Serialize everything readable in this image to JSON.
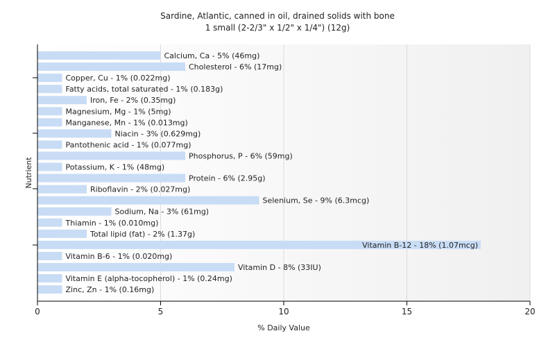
{
  "chart_data": {
    "type": "bar",
    "orientation": "horizontal",
    "title": "Sardine, Atlantic, canned in oil, drained solids with bone",
    "subtitle": "1 small (2-2/3\" x 1/2\" x 1/4\") (12g)",
    "xlabel": "% Daily Value",
    "ylabel": "Nutrient",
    "xlim": [
      0,
      20
    ],
    "xticks": [
      0,
      5,
      10,
      15,
      20
    ],
    "bar_color": "#c8dcf5",
    "grid": true,
    "categories": [
      "Calcium, Ca",
      "Cholesterol",
      "Copper, Cu",
      "Fatty acids, total saturated",
      "Iron, Fe",
      "Magnesium, Mg",
      "Manganese, Mn",
      "Niacin",
      "Pantothenic acid",
      "Phosphorus, P",
      "Potassium, K",
      "Protein",
      "Riboflavin",
      "Selenium, Se",
      "Sodium, Na",
      "Thiamin",
      "Total lipid (fat)",
      "Vitamin B-12",
      "Vitamin B-6",
      "Vitamin D",
      "Vitamin E (alpha-tocopherol)",
      "Zinc, Zn"
    ],
    "values": [
      5,
      6,
      1,
      1,
      2,
      1,
      1,
      3,
      1,
      6,
      1,
      6,
      2,
      9,
      3,
      1,
      2,
      18,
      1,
      8,
      1,
      1
    ],
    "labels": [
      "Calcium, Ca - 5% (46mg)",
      "Cholesterol - 6% (17mg)",
      "Copper, Cu - 1% (0.022mg)",
      "Fatty acids, total saturated - 1% (0.183g)",
      "Iron, Fe - 2% (0.35mg)",
      "Magnesium, Mg - 1% (5mg)",
      "Manganese, Mn - 1% (0.013mg)",
      "Niacin - 3% (0.629mg)",
      "Pantothenic acid - 1% (0.077mg)",
      "Phosphorus, P - 6% (59mg)",
      "Potassium, K - 1% (48mg)",
      "Protein - 6% (2.95g)",
      "Riboflavin - 2% (0.027mg)",
      "Selenium, Se - 9% (6.3mcg)",
      "Sodium, Na - 3% (61mg)",
      "Thiamin - 1% (0.010mg)",
      "Total lipid (fat) - 2% (1.37g)",
      "Vitamin B-12 - 18% (1.07mcg)",
      "Vitamin B-6 - 1% (0.020mg)",
      "Vitamin D - 8% (33IU)",
      "Vitamin E (alpha-tocopherol) - 1% (0.24mg)",
      "Zinc, Zn - 1% (0.16mg)"
    ]
  }
}
